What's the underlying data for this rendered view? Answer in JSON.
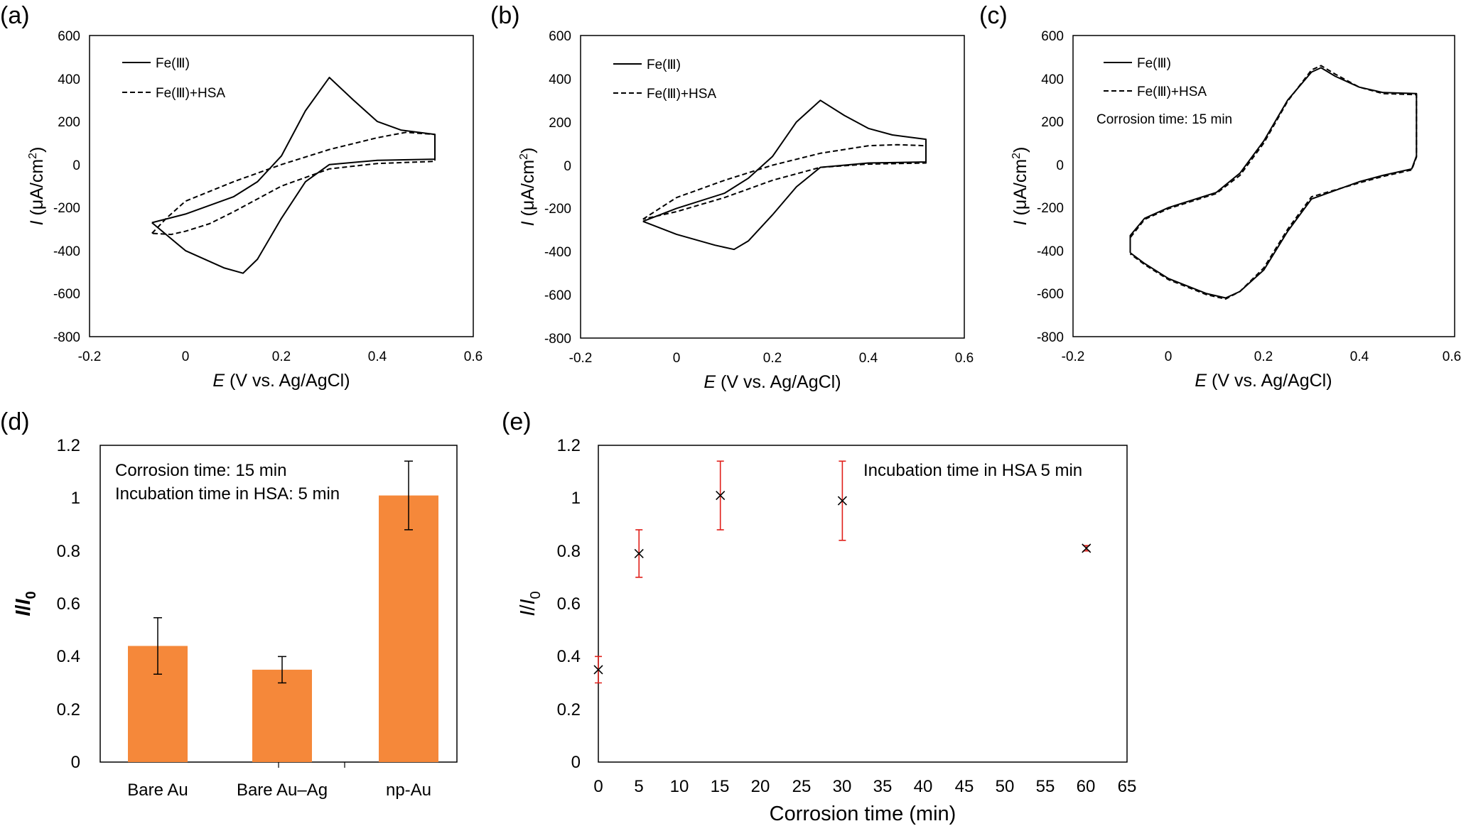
{
  "panels": [
    {
      "id": "a",
      "label": "(a)",
      "xlabel_italic": "E",
      "xlabel_rest": " (V vs. Ag/AgCl)",
      "ylabel_italic": "I",
      "ylabel_rest": " (μA/cm",
      "ylabel_sup": "2",
      "ylabel_close": ")",
      "xlim": [
        -0.2,
        0.6
      ],
      "ylim": [
        -800,
        600
      ],
      "xticks": [
        "-0.2",
        "0",
        "0.2",
        "0.4",
        "0.6"
      ],
      "yticks": [
        "600",
        "400",
        "200",
        "0",
        "-200",
        "-400",
        "-600",
        "-800"
      ],
      "legend": [
        "Fe(Ⅲ)",
        "Fe(Ⅲ)+HSA"
      ],
      "annotation": "",
      "chart_data": {
        "type": "line",
        "series": [
          {
            "name": "Fe(Ⅲ)",
            "style": "solid",
            "points": [
              [
                -0.07,
                -270
              ],
              [
                0,
                -230
              ],
              [
                0.1,
                -150
              ],
              [
                0.15,
                -80
              ],
              [
                0.2,
                40
              ],
              [
                0.25,
                250
              ],
              [
                0.3,
                405
              ],
              [
                0.35,
                300
              ],
              [
                0.4,
                200
              ],
              [
                0.45,
                160
              ],
              [
                0.52,
                140
              ],
              [
                0.52,
                25
              ],
              [
                0.4,
                20
              ],
              [
                0.3,
                0
              ],
              [
                0.25,
                -80
              ],
              [
                0.2,
                -250
              ],
              [
                0.15,
                -440
              ],
              [
                0.12,
                -505
              ],
              [
                0.08,
                -480
              ],
              [
                0,
                -400
              ],
              [
                -0.07,
                -270
              ]
            ]
          },
          {
            "name": "Fe(Ⅲ)+HSA",
            "style": "dashed",
            "points": [
              [
                -0.07,
                -320
              ],
              [
                -0.04,
                -250
              ],
              [
                0,
                -170
              ],
              [
                0.1,
                -80
              ],
              [
                0.2,
                0
              ],
              [
                0.3,
                70
              ],
              [
                0.4,
                125
              ],
              [
                0.46,
                150
              ],
              [
                0.52,
                140
              ],
              [
                0.52,
                15
              ],
              [
                0.4,
                5
              ],
              [
                0.3,
                -20
              ],
              [
                0.2,
                -100
              ],
              [
                0.1,
                -220
              ],
              [
                0.05,
                -275
              ],
              [
                0,
                -310
              ],
              [
                -0.03,
                -325
              ],
              [
                -0.07,
                -320
              ]
            ]
          }
        ]
      }
    },
    {
      "id": "b",
      "label": "(b)",
      "xlabel_italic": "E",
      "xlabel_rest": " (V vs. Ag/AgCl)",
      "ylabel_italic": "I",
      "ylabel_rest": " (μA/cm",
      "ylabel_sup": "2",
      "ylabel_close": ")",
      "xlim": [
        -0.2,
        0.6
      ],
      "ylim": [
        -800,
        600
      ],
      "xticks": [
        "-0.2",
        "0",
        "0.2",
        "0.4",
        "0.6"
      ],
      "yticks": [
        "600",
        "400",
        "200",
        "0",
        "-200",
        "-400",
        "-600",
        "-800"
      ],
      "legend": [
        "Fe(Ⅲ)",
        "Fe(Ⅲ)+HSA"
      ],
      "annotation": "",
      "chart_data": {
        "type": "line",
        "series": [
          {
            "name": "Fe(Ⅲ)",
            "style": "solid",
            "points": [
              [
                -0.07,
                -260
              ],
              [
                0,
                -200
              ],
              [
                0.1,
                -130
              ],
              [
                0.15,
                -60
              ],
              [
                0.2,
                40
              ],
              [
                0.25,
                200
              ],
              [
                0.3,
                300
              ],
              [
                0.35,
                230
              ],
              [
                0.4,
                170
              ],
              [
                0.45,
                140
              ],
              [
                0.52,
                120
              ],
              [
                0.52,
                15
              ],
              [
                0.4,
                10
              ],
              [
                0.3,
                -10
              ],
              [
                0.25,
                -100
              ],
              [
                0.2,
                -230
              ],
              [
                0.15,
                -350
              ],
              [
                0.12,
                -390
              ],
              [
                0.08,
                -370
              ],
              [
                0,
                -320
              ],
              [
                -0.07,
                -260
              ]
            ]
          },
          {
            "name": "Fe(Ⅲ)+HSA",
            "style": "dashed",
            "points": [
              [
                -0.07,
                -250
              ],
              [
                0,
                -150
              ],
              [
                0.1,
                -70
              ],
              [
                0.2,
                0
              ],
              [
                0.3,
                55
              ],
              [
                0.4,
                90
              ],
              [
                0.46,
                95
              ],
              [
                0.52,
                90
              ],
              [
                0.52,
                10
              ],
              [
                0.4,
                5
              ],
              [
                0.3,
                -10
              ],
              [
                0.2,
                -70
              ],
              [
                0.1,
                -150
              ],
              [
                0,
                -215
              ],
              [
                -0.07,
                -250
              ]
            ]
          }
        ]
      }
    },
    {
      "id": "c",
      "label": "(c)",
      "xlabel_italic": "E",
      "xlabel_rest": " (V vs. Ag/AgCl)",
      "ylabel_italic": "I",
      "ylabel_rest": " (μA/cm",
      "ylabel_sup": "2",
      "ylabel_close": ")",
      "xlim": [
        -0.2,
        0.6
      ],
      "ylim": [
        -800,
        600
      ],
      "xticks": [
        "-0.2",
        "0",
        "0.2",
        "0.4",
        "0.6"
      ],
      "yticks": [
        "600",
        "400",
        "200",
        "0",
        "-200",
        "-400",
        "-600",
        "-800"
      ],
      "legend": [
        "Fe(Ⅲ)",
        "Fe(Ⅲ)+HSA"
      ],
      "annotation": "Corrosion time: 15 min",
      "chart_data": {
        "type": "line",
        "series": [
          {
            "name": "Fe(Ⅲ)",
            "style": "solid",
            "points": [
              [
                -0.08,
                -400
              ],
              [
                -0.08,
                -330
              ],
              [
                -0.05,
                -250
              ],
              [
                0,
                -200
              ],
              [
                0.1,
                -130
              ],
              [
                0.15,
                -40
              ],
              [
                0.2,
                110
              ],
              [
                0.25,
                300
              ],
              [
                0.3,
                430
              ],
              [
                0.32,
                450
              ],
              [
                0.35,
                410
              ],
              [
                0.4,
                360
              ],
              [
                0.45,
                335
              ],
              [
                0.52,
                330
              ],
              [
                0.52,
                40
              ],
              [
                0.51,
                -20
              ],
              [
                0.45,
                -50
              ],
              [
                0.4,
                -80
              ],
              [
                0.3,
                -160
              ],
              [
                0.25,
                -310
              ],
              [
                0.2,
                -490
              ],
              [
                0.15,
                -590
              ],
              [
                0.12,
                -620
              ],
              [
                0.08,
                -600
              ],
              [
                0,
                -530
              ],
              [
                -0.05,
                -460
              ],
              [
                -0.08,
                -410
              ]
            ]
          },
          {
            "name": "Fe(Ⅲ)+HSA",
            "style": "dashed",
            "points": [
              [
                -0.08,
                -410
              ],
              [
                -0.08,
                -340
              ],
              [
                -0.05,
                -255
              ],
              [
                0,
                -205
              ],
              [
                0.1,
                -135
              ],
              [
                0.15,
                -50
              ],
              [
                0.2,
                100
              ],
              [
                0.25,
                295
              ],
              [
                0.3,
                440
              ],
              [
                0.32,
                460
              ],
              [
                0.35,
                420
              ],
              [
                0.4,
                360
              ],
              [
                0.45,
                330
              ],
              [
                0.52,
                325
              ],
              [
                0.52,
                35
              ],
              [
                0.51,
                -25
              ],
              [
                0.45,
                -55
              ],
              [
                0.4,
                -85
              ],
              [
                0.3,
                -150
              ],
              [
                0.25,
                -300
              ],
              [
                0.2,
                -480
              ],
              [
                0.15,
                -590
              ],
              [
                0.12,
                -625
              ],
              [
                0.08,
                -605
              ],
              [
                0,
                -535
              ],
              [
                -0.05,
                -465
              ],
              [
                -0.08,
                -415
              ]
            ]
          }
        ]
      }
    }
  ],
  "panel_d": {
    "label": "(d)",
    "ylabel_italic_1": "I",
    "ylabel_slash": "/",
    "ylabel_italic_2": "I",
    "ylabel_sub": "0",
    "annotations": [
      "Corrosion time: 15 min",
      "Incubation time in HSA: 5 min"
    ],
    "yticks": [
      "1.2",
      "1",
      "0.8",
      "0.6",
      "0.4",
      "0.2",
      "0"
    ],
    "bar_color": "#f5883a",
    "chart_data": {
      "type": "bar",
      "categories": [
        "Bare Au",
        "Bare Au–Ag",
        "np-Au"
      ],
      "values": [
        0.44,
        0.35,
        1.01
      ],
      "errors": [
        0.107,
        0.05,
        0.13
      ],
      "ylim": [
        0,
        1.2
      ]
    }
  },
  "panel_e": {
    "label": "(e)",
    "xlabel": "Corrosion time (min)",
    "ylabel_italic_1": "I",
    "ylabel_slash": "/",
    "ylabel_italic_2": "I",
    "ylabel_sub": "0",
    "annotation": "Incubation time in HSA 5 min",
    "xticks": [
      "0",
      "5",
      "10",
      "15",
      "20",
      "25",
      "30",
      "35",
      "40",
      "45",
      "50",
      "55",
      "60",
      "65"
    ],
    "yticks": [
      "1.2",
      "1",
      "0.8",
      "0.6",
      "0.4",
      "0.2",
      "0"
    ],
    "errorbar_color": "#e0201b",
    "chart_data": {
      "type": "scatter",
      "x": [
        0,
        5,
        15,
        30,
        60
      ],
      "y": [
        0.35,
        0.79,
        1.01,
        0.99,
        0.81
      ],
      "errors": [
        0.05,
        0.09,
        0.13,
        0.15,
        0.01
      ],
      "xlim": [
        0,
        65
      ],
      "ylim": [
        0,
        1.2
      ]
    }
  }
}
